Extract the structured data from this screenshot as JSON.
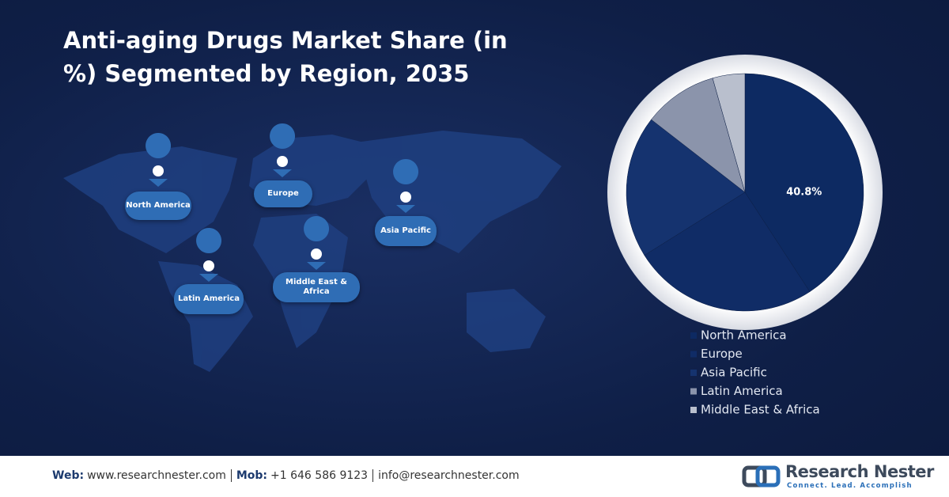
{
  "chart_data": {
    "type": "pie",
    "title": "Anti-aging Drugs Market Share (in %) Segmented by Region, 2035",
    "categories": [
      "North America",
      "Europe",
      "Asia Pacific",
      "Latin America",
      "Middle East & Africa"
    ],
    "values": [
      40.8,
      25.3,
      19.4,
      10.1,
      4.4
    ],
    "value_labels": [
      "40.8%",
      null,
      null,
      null,
      null
    ],
    "colors": [
      "#0d2a62",
      "#102c66",
      "#15336f",
      "#8b94ab",
      "#b9bfcd"
    ]
  },
  "map": {
    "labels": [
      "North America",
      "Europe",
      "Asia Pacific",
      "Latin America",
      "Middle East & Africa"
    ]
  },
  "footer": {
    "contact": [
      {
        "label": "Web:",
        "value": "www.researchnester.com"
      },
      {
        "label": "Mob:",
        "value": "+1 646 586 9123"
      },
      {
        "label": null,
        "value": "info@researchnester.com"
      }
    ],
    "brand": "Research Nester",
    "tagline": "Connect. Lead. Accomplish"
  }
}
